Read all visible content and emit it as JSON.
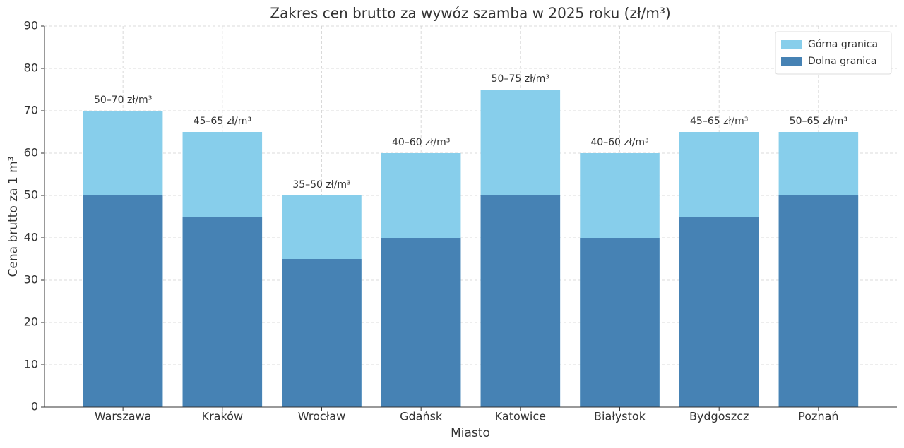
{
  "chart_data": {
    "type": "overlap_bar",
    "title": "Zakres cen brutto za wywóz szamba w 2025 roku (zł/m³)",
    "x_label": "Miasto",
    "y_label": "Cena brutto za 1 m³",
    "categories": [
      "Warszawa",
      "Kraków",
      "Wrocław",
      "Gdańsk",
      "Katowice",
      "Białystok",
      "Bydgoszcz",
      "Poznań"
    ],
    "series": [
      {
        "name": "Górna granica",
        "color": "#87ceeb",
        "values": [
          70,
          65,
          50,
          60,
          75,
          60,
          65,
          65
        ],
        "value_labels": [
          "50–70 zł/m³",
          "45–65 zł/m³",
          "35–50 zł/m³",
          "40–60 zł/m³",
          "50–75 zł/m³",
          "40–60 zł/m³",
          "45–65 zł/m³",
          "50–65 zł/m³"
        ]
      },
      {
        "name": "Dolna granica",
        "color": "#4682b4",
        "values": [
          50,
          45,
          35,
          40,
          50,
          40,
          45,
          50
        ]
      }
    ],
    "ylim": [
      0,
      90
    ],
    "yticks": [
      0,
      10,
      20,
      30,
      40,
      50,
      60,
      70,
      80,
      90
    ],
    "grid": true,
    "legend": "upper right"
  }
}
